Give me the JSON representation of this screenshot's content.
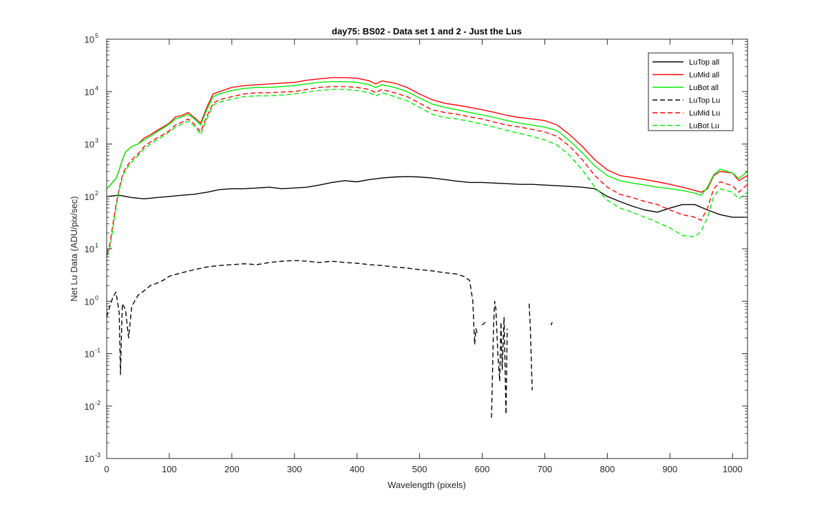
{
  "chart_data": {
    "type": "line",
    "title": "day75: BS02 - Data set 1 and 2 - Just the Lus",
    "xlabel": "Wavelength (pixels)",
    "ylabel": "Net Lu Data (ADU/pix/sec)",
    "xlim": [
      0,
      1024
    ],
    "ylim": [
      0.001,
      100000
    ],
    "yscale": "log",
    "xticks": [
      0,
      100,
      200,
      300,
      400,
      500,
      600,
      700,
      800,
      900,
      1000
    ],
    "xtick_labels": [
      "0",
      "100",
      "200",
      "300",
      "400",
      "500",
      "600",
      "700",
      "800",
      "900",
      "1000"
    ],
    "ytick_exponents": [
      "-3",
      "-2",
      "-1",
      "0",
      "1",
      "2",
      "3",
      "4",
      "5"
    ],
    "ytick_base": "10",
    "grid": false,
    "legend_position": "top-right",
    "series": [
      {
        "name": "LuTop  all",
        "color": "#000000",
        "style": "solid",
        "x": [
          0,
          20,
          40,
          60,
          80,
          100,
          120,
          140,
          160,
          180,
          200,
          220,
          240,
          260,
          280,
          300,
          320,
          340,
          360,
          380,
          400,
          420,
          440,
          460,
          480,
          500,
          520,
          540,
          560,
          580,
          600,
          620,
          640,
          660,
          680,
          700,
          720,
          740,
          760,
          780,
          800,
          820,
          840,
          860,
          880,
          900,
          920,
          940,
          960,
          980,
          1000,
          1024
        ],
        "y": [
          100,
          105,
          95,
          90,
          95,
          100,
          105,
          110,
          120,
          135,
          140,
          140,
          145,
          150,
          140,
          145,
          150,
          165,
          185,
          200,
          190,
          210,
          225,
          235,
          240,
          235,
          225,
          210,
          195,
          185,
          185,
          180,
          175,
          170,
          170,
          165,
          160,
          155,
          150,
          140,
          100,
          80,
          65,
          55,
          50,
          60,
          70,
          70,
          55,
          45,
          40,
          40
        ]
      },
      {
        "name": "LuMid  all",
        "color": "#ff0000",
        "style": "solid",
        "x": [
          0,
          5,
          10,
          15,
          20,
          25,
          30,
          40,
          50,
          60,
          70,
          80,
          90,
          100,
          110,
          120,
          130,
          140,
          150,
          160,
          170,
          180,
          200,
          220,
          240,
          260,
          280,
          300,
          320,
          340,
          360,
          380,
          400,
          420,
          430,
          440,
          460,
          480,
          500,
          520,
          540,
          560,
          580,
          600,
          620,
          640,
          660,
          680,
          700,
          720,
          740,
          760,
          780,
          800,
          820,
          840,
          860,
          880,
          900,
          920,
          940,
          950,
          960,
          970,
          980,
          1000,
          1010,
          1024
        ],
        "y": [
          140,
          160,
          190,
          220,
          320,
          500,
          700,
          900,
          1000,
          1300,
          1500,
          1800,
          2100,
          2500,
          3300,
          3500,
          4000,
          3200,
          2500,
          5000,
          9000,
          10000,
          12000,
          13000,
          13500,
          14000,
          14500,
          15000,
          16500,
          17500,
          18500,
          18500,
          18000,
          16000,
          14000,
          16000,
          14500,
          12000,
          9000,
          7000,
          6000,
          5500,
          5000,
          4500,
          4000,
          3500,
          3200,
          3000,
          2800,
          2300,
          1500,
          900,
          500,
          320,
          250,
          230,
          210,
          190,
          170,
          150,
          130,
          120,
          140,
          250,
          300,
          280,
          200,
          250
        ]
      },
      {
        "name": "LuBot  all",
        "color": "#00ee00",
        "style": "solid",
        "x": [
          0,
          5,
          10,
          15,
          20,
          25,
          30,
          40,
          50,
          60,
          70,
          80,
          90,
          100,
          110,
          120,
          130,
          140,
          150,
          160,
          170,
          180,
          200,
          220,
          240,
          260,
          280,
          300,
          320,
          340,
          360,
          380,
          400,
          420,
          430,
          440,
          460,
          480,
          500,
          520,
          540,
          560,
          580,
          600,
          620,
          640,
          660,
          680,
          700,
          720,
          740,
          760,
          780,
          800,
          820,
          840,
          860,
          880,
          900,
          920,
          940,
          950,
          960,
          970,
          980,
          1000,
          1010,
          1024
        ],
        "y": [
          140,
          160,
          190,
          220,
          320,
          500,
          700,
          900,
          1000,
          1200,
          1400,
          1700,
          2000,
          2400,
          3000,
          3300,
          3700,
          3000,
          2300,
          4500,
          8000,
          9000,
          10500,
          11500,
          12000,
          12000,
          12500,
          13000,
          14000,
          15000,
          15500,
          15500,
          15000,
          13500,
          12000,
          13500,
          12000,
          10000,
          7500,
          5800,
          5000,
          4500,
          4000,
          3600,
          3200,
          2800,
          2500,
          2300,
          2100,
          1800,
          1150,
          680,
          380,
          250,
          200,
          180,
          165,
          150,
          140,
          130,
          115,
          105,
          150,
          260,
          330,
          280,
          220,
          300
        ]
      },
      {
        "name": "LuTop  Lu",
        "color": "#000000",
        "style": "dashed",
        "gaps": true,
        "x": [
          0,
          5,
          10,
          15,
          20,
          22,
          25,
          30,
          35,
          40,
          50,
          60,
          70,
          80,
          90,
          100,
          120,
          140,
          160,
          180,
          200,
          220,
          240,
          260,
          280,
          300,
          320,
          340,
          360,
          380,
          400,
          420,
          440,
          460,
          480,
          500,
          520,
          540,
          560,
          570,
          580,
          585,
          588,
          590,
          592,
          null,
          600,
          605,
          null,
          615,
          618,
          620,
          622,
          625,
          628,
          630,
          632,
          635,
          638,
          640,
          null,
          675,
          677,
          680,
          null,
          710,
          712
        ],
        "y": [
          0.5,
          0.8,
          1.2,
          1.5,
          0.6,
          0.04,
          0.9,
          0.7,
          0.2,
          0.8,
          1.3,
          1.6,
          2.0,
          2.2,
          2.5,
          3.0,
          3.5,
          4.0,
          4.5,
          4.8,
          5.0,
          5.2,
          5.0,
          5.5,
          5.8,
          6.0,
          5.8,
          5.5,
          5.8,
          5.5,
          5.3,
          5.0,
          4.8,
          4.5,
          4.3,
          4.0,
          3.8,
          3.5,
          3.3,
          3.0,
          2.5,
          1.0,
          0.15,
          0.3,
          0.25,
          null,
          0.35,
          0.4,
          null,
          0.006,
          0.3,
          1.0,
          0.7,
          0.1,
          0.03,
          0.4,
          0.05,
          0.5,
          0.007,
          0.3,
          null,
          0.9,
          0.3,
          0.02,
          null,
          0.35,
          0.4
        ]
      },
      {
        "name": "LuMid  Lu",
        "color": "#ff0000",
        "style": "dashed",
        "x": [
          0,
          5,
          10,
          15,
          20,
          25,
          30,
          40,
          50,
          60,
          70,
          80,
          90,
          100,
          110,
          120,
          130,
          140,
          150,
          160,
          170,
          180,
          200,
          220,
          240,
          260,
          280,
          300,
          320,
          340,
          360,
          380,
          400,
          420,
          430,
          440,
          460,
          480,
          500,
          520,
          540,
          560,
          580,
          600,
          620,
          640,
          660,
          680,
          700,
          720,
          740,
          760,
          780,
          800,
          820,
          840,
          860,
          880,
          900,
          920,
          940,
          950,
          960,
          970,
          980,
          1000,
          1010,
          1024
        ],
        "y": [
          8,
          12,
          30,
          70,
          140,
          250,
          350,
          500,
          650,
          900,
          1100,
          1300,
          1500,
          1800,
          2300,
          2600,
          3000,
          2400,
          1700,
          3400,
          6000,
          7000,
          8000,
          9000,
          9500,
          9500,
          9800,
          10000,
          11000,
          12000,
          12500,
          12500,
          12000,
          11000,
          9500,
          11000,
          9500,
          8000,
          6000,
          4500,
          4000,
          3700,
          3300,
          3000,
          2600,
          2300,
          2100,
          1900,
          1700,
          1400,
          900,
          500,
          250,
          150,
          110,
          95,
          80,
          70,
          55,
          45,
          40,
          35,
          60,
          140,
          190,
          160,
          120,
          170
        ]
      },
      {
        "name": "LuBot  Lu",
        "color": "#00ee00",
        "style": "dashed",
        "x": [
          0,
          5,
          10,
          15,
          20,
          25,
          30,
          40,
          50,
          60,
          70,
          80,
          90,
          100,
          110,
          120,
          130,
          140,
          150,
          160,
          170,
          180,
          200,
          220,
          240,
          260,
          280,
          300,
          320,
          340,
          360,
          380,
          400,
          420,
          430,
          440,
          460,
          480,
          500,
          520,
          540,
          560,
          580,
          600,
          620,
          640,
          660,
          680,
          700,
          720,
          740,
          760,
          780,
          800,
          820,
          840,
          860,
          880,
          900,
          920,
          940,
          950,
          960,
          970,
          980,
          1000,
          1010,
          1024
        ],
        "y": [
          7,
          10,
          25,
          60,
          130,
          230,
          320,
          450,
          600,
          820,
          1000,
          1200,
          1400,
          1700,
          2100,
          2400,
          2700,
          2200,
          1500,
          3000,
          5500,
          6300,
          7200,
          8000,
          8300,
          8300,
          8600,
          9000,
          9800,
          10500,
          11000,
          11000,
          10500,
          9500,
          8200,
          9500,
          8000,
          6700,
          5000,
          3700,
          3200,
          3000,
          2700,
          2400,
          2100,
          1800,
          1600,
          1400,
          1200,
          950,
          600,
          320,
          150,
          85,
          60,
          50,
          40,
          32,
          25,
          18,
          17,
          22,
          40,
          100,
          140,
          120,
          90,
          120
        ]
      }
    ]
  }
}
